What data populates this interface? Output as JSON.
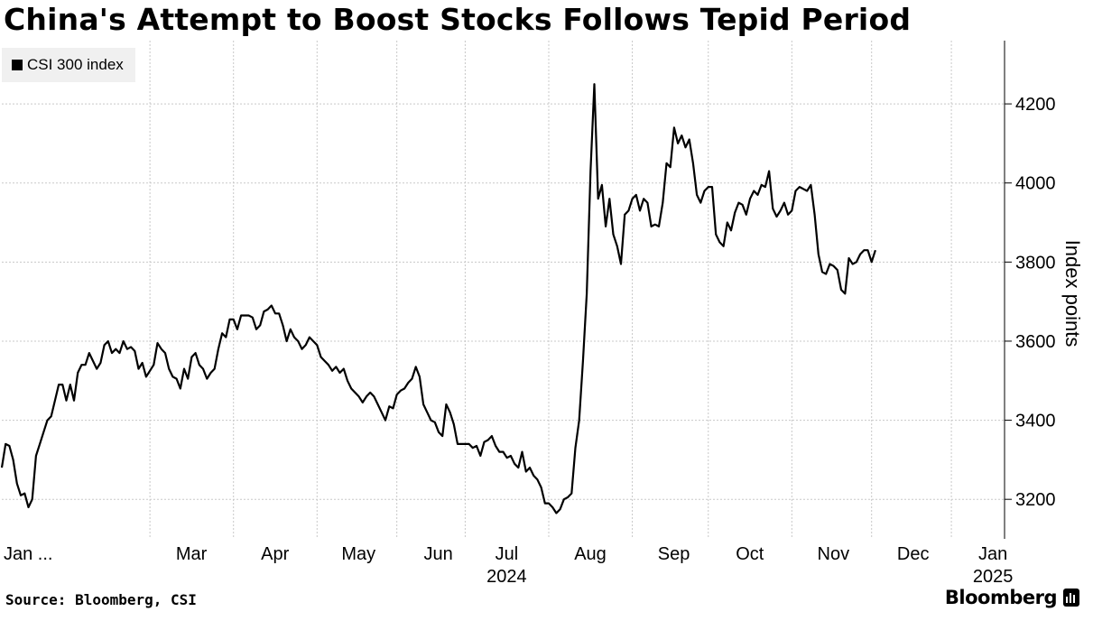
{
  "title": "China's Attempt to Boost Stocks Follows Tepid Period",
  "source": "Source: Bloomberg, CSI",
  "brand": "Bloomberg",
  "icons": {
    "brand_logo": "bloomberg-terminal-icon"
  },
  "colors": {
    "line": "#000000",
    "grid": "#c8c8c8",
    "legend_bg": "#f0f0f0"
  },
  "chart_data": {
    "type": "line",
    "title": "China's Attempt to Boost Stocks Follows Tepid Period",
    "xlabel": "",
    "ylabel": "Index points",
    "ylim": [
      3100,
      4360
    ],
    "yticks": [
      3200,
      3400,
      3600,
      3800,
      4000,
      4200
    ],
    "x_range": [
      0,
      264
    ],
    "x_unit": "trading days since 2 Jan 2024",
    "xticks": [
      {
        "label": "Jan ...",
        "year": "",
        "pos": 0
      },
      {
        "label": "Mar",
        "year": "",
        "pos": 39
      },
      {
        "label": "Apr",
        "year": "",
        "pos": 61
      },
      {
        "label": "May",
        "year": "",
        "pos": 83
      },
      {
        "label": "Jun",
        "year": "",
        "pos": 104
      },
      {
        "label": "Jul",
        "year": "2024",
        "pos": 122
      },
      {
        "label": "Aug",
        "year": "",
        "pos": 144
      },
      {
        "label": "Sep",
        "year": "",
        "pos": 166
      },
      {
        "label": "Oct",
        "year": "",
        "pos": 186
      },
      {
        "label": "Nov",
        "year": "",
        "pos": 208
      },
      {
        "label": "Dec",
        "year": "",
        "pos": 229
      },
      {
        "label": "Jan",
        "year": "2025",
        "pos": 250
      }
    ],
    "grid": true,
    "legend": {
      "position": "top-left",
      "entries": [
        "CSI 300 index"
      ]
    },
    "series": [
      {
        "name": "CSI 300 index",
        "points": [
          [
            0,
            3280
          ],
          [
            1,
            3340
          ],
          [
            2,
            3335
          ],
          [
            3,
            3300
          ],
          [
            4,
            3240
          ],
          [
            5,
            3210
          ],
          [
            6,
            3215
          ],
          [
            7,
            3180
          ],
          [
            8,
            3200
          ],
          [
            9,
            3310
          ],
          [
            10,
            3340
          ],
          [
            11,
            3370
          ],
          [
            12,
            3400
          ],
          [
            13,
            3410
          ],
          [
            14,
            3450
          ],
          [
            15,
            3490
          ],
          [
            16,
            3490
          ],
          [
            17,
            3450
          ],
          [
            18,
            3490
          ],
          [
            19,
            3450
          ],
          [
            20,
            3520
          ],
          [
            21,
            3540
          ],
          [
            22,
            3540
          ],
          [
            23,
            3570
          ],
          [
            24,
            3550
          ],
          [
            25,
            3530
          ],
          [
            26,
            3545
          ],
          [
            27,
            3590
          ],
          [
            28,
            3600
          ],
          [
            29,
            3570
          ],
          [
            30,
            3580
          ],
          [
            31,
            3570
          ],
          [
            32,
            3600
          ],
          [
            33,
            3580
          ],
          [
            34,
            3585
          ],
          [
            35,
            3575
          ],
          [
            36,
            3530
          ],
          [
            37,
            3545
          ],
          [
            38,
            3510
          ],
          [
            39,
            3525
          ],
          [
            40,
            3540
          ],
          [
            41,
            3595
          ],
          [
            42,
            3580
          ],
          [
            43,
            3570
          ],
          [
            44,
            3530
          ],
          [
            45,
            3510
          ],
          [
            46,
            3505
          ],
          [
            47,
            3480
          ],
          [
            48,
            3530
          ],
          [
            49,
            3505
          ],
          [
            50,
            3560
          ],
          [
            51,
            3570
          ],
          [
            52,
            3540
          ],
          [
            53,
            3530
          ],
          [
            54,
            3505
          ],
          [
            55,
            3520
          ],
          [
            56,
            3530
          ],
          [
            57,
            3580
          ],
          [
            58,
            3620
          ],
          [
            59,
            3610
          ],
          [
            60,
            3655
          ],
          [
            61,
            3655
          ],
          [
            62,
            3630
          ],
          [
            63,
            3665
          ],
          [
            64,
            3665
          ],
          [
            65,
            3665
          ],
          [
            66,
            3660
          ],
          [
            67,
            3630
          ],
          [
            68,
            3640
          ],
          [
            69,
            3675
          ],
          [
            70,
            3680
          ],
          [
            71,
            3690
          ],
          [
            72,
            3670
          ],
          [
            73,
            3670
          ],
          [
            74,
            3640
          ],
          [
            75,
            3600
          ],
          [
            76,
            3630
          ],
          [
            77,
            3610
          ],
          [
            78,
            3600
          ],
          [
            79,
            3580
          ],
          [
            80,
            3590
          ],
          [
            81,
            3610
          ],
          [
            82,
            3600
          ],
          [
            83,
            3590
          ],
          [
            84,
            3560
          ],
          [
            85,
            3550
          ],
          [
            86,
            3540
          ],
          [
            87,
            3525
          ],
          [
            88,
            3535
          ],
          [
            89,
            3520
          ],
          [
            90,
            3530
          ],
          [
            91,
            3500
          ],
          [
            92,
            3480
          ],
          [
            93,
            3470
          ],
          [
            94,
            3460
          ],
          [
            95,
            3445
          ],
          [
            96,
            3460
          ],
          [
            97,
            3470
          ],
          [
            98,
            3460
          ],
          [
            99,
            3440
          ],
          [
            100,
            3420
          ],
          [
            101,
            3400
          ],
          [
            102,
            3435
          ],
          [
            103,
            3430
          ],
          [
            104,
            3465
          ],
          [
            105,
            3475
          ],
          [
            106,
            3480
          ],
          [
            107,
            3495
          ],
          [
            108,
            3505
          ],
          [
            109,
            3535
          ],
          [
            110,
            3510
          ],
          [
            111,
            3440
          ],
          [
            112,
            3420
          ],
          [
            113,
            3400
          ],
          [
            114,
            3395
          ],
          [
            115,
            3370
          ],
          [
            116,
            3360
          ],
          [
            117,
            3440
          ],
          [
            118,
            3420
          ],
          [
            119,
            3390
          ],
          [
            120,
            3340
          ],
          [
            121,
            3340
          ],
          [
            122,
            3340
          ],
          [
            123,
            3340
          ],
          [
            124,
            3330
          ],
          [
            125,
            3335
          ],
          [
            126,
            3310
          ],
          [
            127,
            3345
          ],
          [
            128,
            3350
          ],
          [
            129,
            3360
          ],
          [
            130,
            3335
          ],
          [
            131,
            3320
          ],
          [
            132,
            3320
          ],
          [
            133,
            3305
          ],
          [
            134,
            3310
          ],
          [
            135,
            3290
          ],
          [
            136,
            3280
          ],
          [
            137,
            3320
          ],
          [
            138,
            3270
          ],
          [
            139,
            3280
          ],
          [
            140,
            3260
          ],
          [
            141,
            3250
          ],
          [
            142,
            3230
          ],
          [
            143,
            3190
          ],
          [
            144,
            3190
          ],
          [
            145,
            3180
          ],
          [
            146,
            3165
          ],
          [
            147,
            3175
          ],
          [
            148,
            3200
          ],
          [
            149,
            3205
          ],
          [
            150,
            3215
          ],
          [
            151,
            3330
          ],
          [
            152,
            3400
          ],
          [
            153,
            3550
          ],
          [
            154,
            3720
          ],
          [
            155,
            4030
          ],
          [
            156,
            4250
          ],
          [
            157,
            3960
          ],
          [
            158,
            3995
          ],
          [
            159,
            3890
          ],
          [
            160,
            3960
          ],
          [
            161,
            3870
          ],
          [
            162,
            3840
          ],
          [
            163,
            3795
          ],
          [
            164,
            3920
          ],
          [
            165,
            3930
          ],
          [
            166,
            3960
          ],
          [
            167,
            3970
          ],
          [
            168,
            3930
          ],
          [
            169,
            3960
          ],
          [
            170,
            3950
          ],
          [
            171,
            3890
          ],
          [
            172,
            3895
          ],
          [
            173,
            3890
          ],
          [
            174,
            3950
          ],
          [
            175,
            4050
          ],
          [
            176,
            4040
          ],
          [
            177,
            4140
          ],
          [
            178,
            4100
          ],
          [
            179,
            4120
          ],
          [
            180,
            4090
          ],
          [
            181,
            4110
          ],
          [
            182,
            4050
          ],
          [
            183,
            3970
          ],
          [
            184,
            3950
          ],
          [
            185,
            3980
          ],
          [
            186,
            3990
          ],
          [
            187,
            3990
          ],
          [
            188,
            3870
          ],
          [
            189,
            3850
          ],
          [
            190,
            3840
          ],
          [
            191,
            3900
          ],
          [
            192,
            3880
          ],
          [
            193,
            3925
          ],
          [
            194,
            3950
          ],
          [
            195,
            3945
          ],
          [
            196,
            3920
          ],
          [
            197,
            3960
          ],
          [
            198,
            3980
          ],
          [
            199,
            3970
          ],
          [
            200,
            3995
          ],
          [
            201,
            3990
          ],
          [
            202,
            4030
          ],
          [
            203,
            3935
          ],
          [
            204,
            3915
          ],
          [
            205,
            3930
          ],
          [
            206,
            3950
          ],
          [
            207,
            3920
          ],
          [
            208,
            3930
          ],
          [
            209,
            3980
          ],
          [
            210,
            3990
          ],
          [
            211,
            3985
          ],
          [
            212,
            3980
          ],
          [
            213,
            3995
          ],
          [
            214,
            3920
          ],
          [
            215,
            3820
          ],
          [
            216,
            3775
          ],
          [
            217,
            3770
          ],
          [
            218,
            3795
          ],
          [
            219,
            3790
          ],
          [
            220,
            3780
          ],
          [
            221,
            3730
          ],
          [
            222,
            3720
          ],
          [
            223,
            3810
          ],
          [
            224,
            3795
          ],
          [
            225,
            3800
          ],
          [
            226,
            3820
          ],
          [
            227,
            3830
          ],
          [
            228,
            3830
          ],
          [
            229,
            3800
          ],
          [
            230,
            3830
          ]
        ]
      }
    ]
  }
}
